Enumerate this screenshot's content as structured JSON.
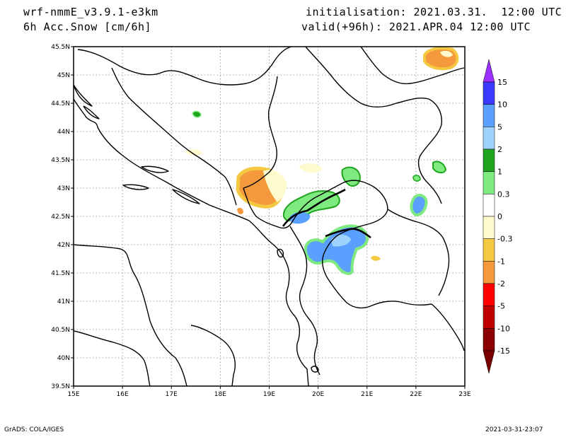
{
  "header": {
    "model": "wrf-nmmE_v3.9.1-e3km",
    "field": "6h Acc.Snow [cm/6h]",
    "init": "initialisation: 2021.03.31.  12:00 UTC",
    "valid": "valid(+96h): 2021.APR.04 12:00 UTC"
  },
  "footer": {
    "credit": "GrADS: COLA/IGES",
    "timestamp": "2021-03-31-23:07"
  },
  "axes": {
    "lon_labels": [
      "15E",
      "16E",
      "17E",
      "18E",
      "19E",
      "20E",
      "21E",
      "22E",
      "23E"
    ],
    "lat_labels": [
      "45.5N",
      "45N",
      "44.5N",
      "44N",
      "43.5N",
      "43N",
      "42.5N",
      "42N",
      "41.5N",
      "41N",
      "40.5N",
      "40N",
      "39.5N"
    ]
  },
  "colorbar": {
    "labels": [
      "15",
      "10",
      "5",
      "2",
      "1",
      "0.3",
      "0",
      "-0.3",
      "-1",
      "-2",
      "-5",
      "-10",
      "-15"
    ],
    "colors": [
      "#3b3bff",
      "#5aa0ff",
      "#9fd2ff",
      "#1fa51f",
      "#7fea7f",
      "#ffffff",
      "#fffacd",
      "#f5c842",
      "#f59a3c",
      "#ff0000",
      "#c00000",
      "#8b0000"
    ],
    "top_arrow_color": "#9b30ff",
    "bottom_arrow_color": "#7a0000"
  }
}
